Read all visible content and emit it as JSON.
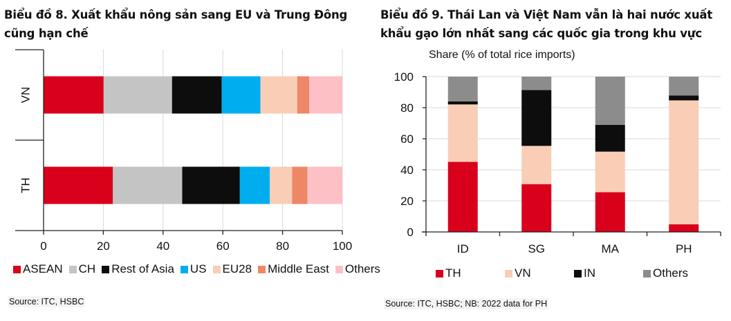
{
  "chart_data": [
    {
      "type": "bar",
      "orientation": "horizontal",
      "stacked": true,
      "title": "Biểu đồ 8. Xuất khẩu nông sản sang EU và Trung Đông cũng hạn chế",
      "categories": [
        "VN",
        "TH"
      ],
      "series": [
        {
          "name": "ASEAN",
          "color": "#D9001B",
          "values": [
            20.1,
            23.2
          ]
        },
        {
          "name": "CH",
          "color": "#C4C4C4",
          "values": [
            22.9,
            23.2
          ]
        },
        {
          "name": "Rest of Asia",
          "color": "#0D0D0D",
          "values": [
            16.6,
            19.3
          ]
        },
        {
          "name": "US",
          "color": "#00AEEF",
          "values": [
            13.0,
            10.0
          ]
        },
        {
          "name": "EU28",
          "color": "#F9CDB6",
          "values": [
            12.3,
            7.5
          ]
        },
        {
          "name": "Middle East",
          "color": "#EE8766",
          "values": [
            4.0,
            5.1
          ]
        },
        {
          "name": "Others",
          "color": "#FDC0C5",
          "values": [
            11.1,
            11.7
          ]
        }
      ],
      "xlabel": "",
      "ylabel": "",
      "xlim": [
        0,
        100
      ],
      "xticks": [
        "0",
        "20",
        "40",
        "60",
        "80",
        "100"
      ],
      "grid": true,
      "legend": "bottom",
      "source": "Source: ITC, HSBC"
    },
    {
      "type": "bar",
      "orientation": "vertical",
      "stacked": true,
      "title": "Biểu đồ 9. Thái Lan và Việt Nam vẫn là hai nước xuất khẩu gạo lớn nhất sang các quốc gia trong khu vực",
      "categories": [
        "ID",
        "SG",
        "MA",
        "PH"
      ],
      "series": [
        {
          "name": "TH",
          "color": "#D9001B",
          "values": [
            45.1,
            30.8,
            25.6,
            4.9
          ]
        },
        {
          "name": "VN",
          "color": "#F9CDB6",
          "values": [
            37.0,
            24.6,
            26.1,
            79.8
          ]
        },
        {
          "name": "IN",
          "color": "#0D0D0D",
          "values": [
            1.9,
            36.0,
            17.3,
            3.2
          ]
        },
        {
          "name": "Others",
          "color": "#8C8C8C",
          "values": [
            16.0,
            8.6,
            31.0,
            12.1
          ]
        }
      ],
      "xlabel": "",
      "ylabel": "Share (% of total  rice imports)",
      "ylim": [
        0,
        100
      ],
      "yticks": [
        "0",
        "20",
        "40",
        "60",
        "80",
        "100"
      ],
      "grid": true,
      "legend": "bottom",
      "source": "Source: ITC, HSBC; NB: 2022 data for PH"
    }
  ],
  "titles": {
    "chart8": "Biểu đồ 8. Xuất khẩu nông sản sang EU và Trung Đông cũng hạn chế",
    "chart9": "Biểu đồ 9. Thái Lan và Việt Nam vẫn là hai nước xuất khẩu gạo lớn nhất sang các quốc gia trong khu vực"
  }
}
